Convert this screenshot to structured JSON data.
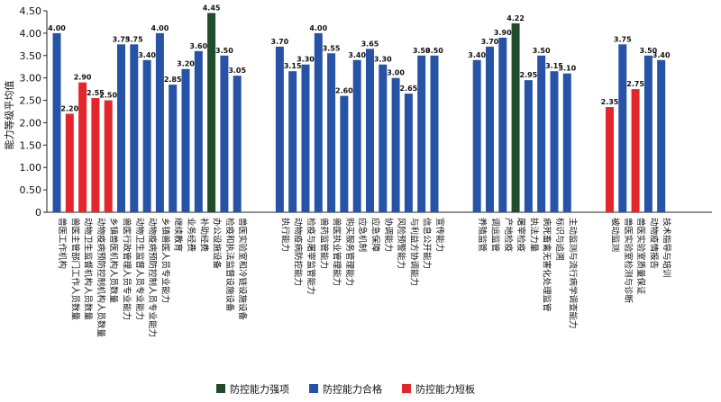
{
  "chart_data": {
    "type": "bar",
    "ylabel": "能力等级平均值",
    "ylim": [
      0,
      4.5
    ],
    "yticks": [
      "0",
      "0.50",
      "1.00",
      "1.50",
      "2.00",
      "2.50",
      "3.00",
      "3.50",
      "4.00",
      "4.50"
    ],
    "grid": false,
    "legend_position": "bottom",
    "colors": {
      "strong": "#1f4d2b",
      "pass": "#2753a6",
      "weak": "#e3262b"
    },
    "legend": [
      {
        "key": "strong",
        "label": "防控能力强项"
      },
      {
        "key": "pass",
        "label": "防控能力合格"
      },
      {
        "key": "weak",
        "label": "防控能力短板"
      }
    ],
    "groups": [
      [
        {
          "label": "兽医工作机构",
          "value": 4.0,
          "value_label": "4.00",
          "type": "pass"
        },
        {
          "label": "兽医主管部门工作人员数量",
          "value": 2.2,
          "value_label": "2.20",
          "type": "weak"
        },
        {
          "label": "动物卫生监督机构人员数量",
          "value": 2.9,
          "value_label": "2.90",
          "type": "weak"
        },
        {
          "label": "动物疫病预防控制机构人员数量",
          "value": 2.55,
          "value_label": "2.55",
          "type": "weak"
        },
        {
          "label": "乡镇兽医机构人员数量",
          "value": 2.5,
          "value_label": "2.50",
          "type": "weak"
        },
        {
          "label": "兽医行政管理人员专业能力",
          "value": 3.75,
          "value_label": "3.75",
          "type": "pass"
        },
        {
          "label": "动物卫生监督人员专业能力",
          "value": 3.75,
          "value_label": "3.75",
          "type": "pass"
        },
        {
          "label": "动物疫病预防控制人员专业能力",
          "value": 3.4,
          "value_label": "3.40",
          "type": "pass"
        },
        {
          "label": "乡镇兽医人员专业能力",
          "value": 4.0,
          "value_label": "4.00",
          "type": "pass"
        },
        {
          "label": "继续教育",
          "value": 2.85,
          "value_label": "2.85",
          "type": "pass"
        },
        {
          "label": "业务经费",
          "value": 3.2,
          "value_label": "3.20",
          "type": "pass"
        },
        {
          "label": "补助经费",
          "value": 3.6,
          "value_label": "3.60",
          "type": "pass"
        },
        {
          "label": "办公设施设备",
          "value": 4.45,
          "value_label": "4.45",
          "type": "strong"
        },
        {
          "label": "检疫和执法监督设施设备",
          "value": 3.5,
          "value_label": "3.50",
          "type": "pass"
        },
        {
          "label": "兽医实验室和冷链设施设备",
          "value": 3.05,
          "value_label": "3.05",
          "type": "pass"
        }
      ],
      [
        {
          "label": "执行能力",
          "value": 3.7,
          "value_label": "3.70",
          "type": "pass"
        },
        {
          "label": "动物疫病防控能力",
          "value": 3.15,
          "value_label": "3.15",
          "type": "pass"
        },
        {
          "label": "检疫与屠宰监管能力",
          "value": 3.3,
          "value_label": "3.30",
          "type": "pass"
        },
        {
          "label": "兽药监管能力",
          "value": 4.0,
          "value_label": "4.00",
          "type": "pass"
        },
        {
          "label": "兽医执业管理能力",
          "value": 3.55,
          "value_label": "3.55",
          "type": "pass"
        },
        {
          "label": "购买服务管理能力",
          "value": 2.6,
          "value_label": "2.60",
          "type": "pass"
        },
        {
          "label": "应急机制",
          "value": 3.4,
          "value_label": "3.40",
          "type": "pass"
        },
        {
          "label": "应急保障",
          "value": 3.65,
          "value_label": "3.65",
          "type": "pass"
        },
        {
          "label": "协调能力",
          "value": 3.3,
          "value_label": "3.30",
          "type": "pass"
        },
        {
          "label": "风险预警能力",
          "value": 3.0,
          "value_label": "3.00",
          "type": "pass"
        },
        {
          "label": "与利益方协调能力",
          "value": 2.65,
          "value_label": "2.65",
          "type": "pass"
        },
        {
          "label": "信息公开能力",
          "value": 3.5,
          "value_label": "3.50",
          "type": "pass"
        },
        {
          "label": "宣传能力",
          "value": 3.5,
          "value_label": "3.50",
          "type": "pass"
        }
      ],
      [
        {
          "label": "养殖监管",
          "value": 3.4,
          "value_label": "3.40",
          "type": "pass"
        },
        {
          "label": "调运监管",
          "value": 3.7,
          "value_label": "3.70",
          "type": "pass"
        },
        {
          "label": "产地检疫",
          "value": 3.9,
          "value_label": "3.90",
          "type": "pass"
        },
        {
          "label": "屠宰检疫",
          "value": 4.22,
          "value_label": "4.22",
          "type": "strong"
        },
        {
          "label": "执法力量",
          "value": 2.95,
          "value_label": "2.95",
          "type": "pass"
        },
        {
          "label": "病死畜禽无害化处理监管",
          "value": 3.5,
          "value_label": "3.50",
          "type": "pass"
        },
        {
          "label": "标识与追溯",
          "value": 3.15,
          "value_label": "3.15",
          "type": "pass"
        },
        {
          "label": "主动监测与流行病学调查能力",
          "value": 3.1,
          "value_label": "3.10",
          "type": "pass"
        }
      ],
      [
        {
          "label": "被动监测",
          "value": 2.35,
          "value_label": "2.35",
          "type": "weak"
        },
        {
          "label": "兽医实验室检测与诊断",
          "value": 3.75,
          "value_label": "3.75",
          "type": "pass"
        },
        {
          "label": "兽医实验室质量保证",
          "value": 2.75,
          "value_label": "2.75",
          "type": "weak"
        },
        {
          "label": "动物疫情报告",
          "value": 3.5,
          "value_label": "3.50",
          "type": "pass"
        },
        {
          "label": "技术指导与培训",
          "value": 3.4,
          "value_label": "3.40",
          "type": "pass"
        }
      ]
    ]
  }
}
